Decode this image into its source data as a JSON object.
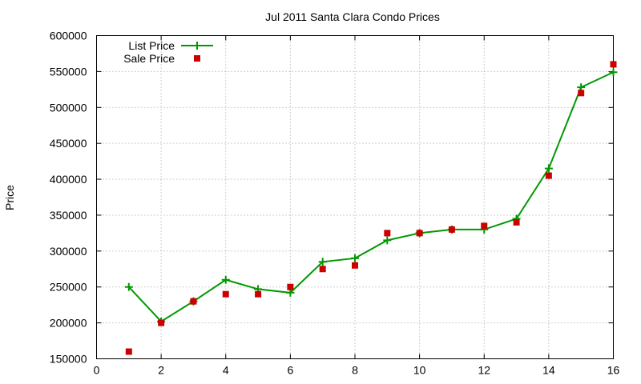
{
  "chart_data": {
    "type": "line",
    "title": "Jul 2011 Santa Clara Condo Prices",
    "xlabel": "",
    "ylabel": "Price",
    "xlim": [
      0,
      16
    ],
    "ylim": [
      150000,
      600000
    ],
    "xticks": [
      0,
      2,
      4,
      6,
      8,
      10,
      12,
      14,
      16
    ],
    "yticks": [
      150000,
      200000,
      250000,
      300000,
      350000,
      400000,
      450000,
      500000,
      550000,
      600000
    ],
    "grid": true,
    "legend": "top-left",
    "series": [
      {
        "name": "List Price",
        "style": "lines+points",
        "marker": "plus",
        "color": "#009900",
        "x": [
          1,
          2,
          3,
          4,
          5,
          6,
          7,
          8,
          9,
          10,
          11,
          12,
          13,
          14,
          15,
          16
        ],
        "y": [
          250000,
          202000,
          230000,
          260000,
          247000,
          242000,
          285000,
          290000,
          315000,
          325000,
          330000,
          330000,
          345000,
          415000,
          528000,
          549000
        ]
      },
      {
        "name": "Sale Price",
        "style": "points",
        "marker": "square",
        "color": "#cc0000",
        "x": [
          1,
          2,
          3,
          4,
          5,
          6,
          7,
          8,
          9,
          10,
          11,
          12,
          13,
          14,
          15,
          16
        ],
        "y": [
          160000,
          200000,
          230000,
          240000,
          240000,
          250000,
          275000,
          280000,
          325000,
          325000,
          330000,
          335000,
          340000,
          405000,
          520000,
          560000
        ]
      }
    ]
  }
}
